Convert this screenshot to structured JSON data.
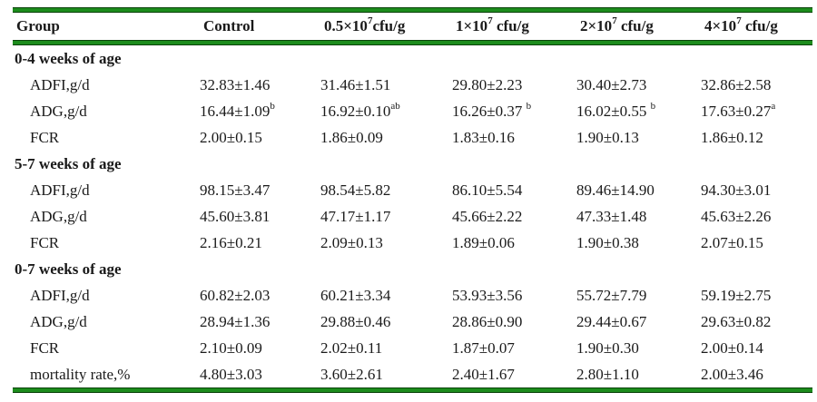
{
  "figure": {
    "name": "broiler-growth-performance-table"
  },
  "colors": {
    "rule_green": "#1d8c1d",
    "rule_edge": "#0a420a",
    "text": "#1a1a1a"
  },
  "table": {
    "header": [
      [
        {
          "t": "Group"
        }
      ],
      [
        {
          "t": "Control"
        }
      ],
      [
        {
          "t": "0.5×10"
        },
        {
          "t": "7",
          "sup": true
        },
        {
          "t": "cfu/g"
        }
      ],
      [
        {
          "t": "1×10"
        },
        {
          "t": "7",
          "sup": true
        },
        {
          "t": " cfu/g"
        }
      ],
      [
        {
          "t": "2×10"
        },
        {
          "t": "7",
          "sup": true
        },
        {
          "t": " cfu/g"
        }
      ],
      [
        {
          "t": "4×10"
        },
        {
          "t": "7",
          "sup": true
        },
        {
          "t": " cfu/g"
        }
      ]
    ],
    "sections": [
      {
        "title": "0-4 weeks of age",
        "rows": [
          {
            "label": "ADFI,g/d",
            "values": [
              [
                {
                  "t": "32.83±1.46"
                }
              ],
              [
                {
                  "t": "31.46±1.51"
                }
              ],
              [
                {
                  "t": "29.80±2.23"
                }
              ],
              [
                {
                  "t": "30.40±2.73"
                }
              ],
              [
                {
                  "t": "32.86±2.58"
                }
              ]
            ]
          },
          {
            "label": "ADG,g/d",
            "values": [
              [
                {
                  "t": "16.44±1.09"
                },
                {
                  "t": "b",
                  "sup": true
                }
              ],
              [
                {
                  "t": "16.92±0.10"
                },
                {
                  "t": "ab",
                  "sup": true
                }
              ],
              [
                {
                  "t": "16.26±0.37 "
                },
                {
                  "t": "b",
                  "sup": true
                }
              ],
              [
                {
                  "t": "16.02±0.55 "
                },
                {
                  "t": "b",
                  "sup": true
                }
              ],
              [
                {
                  "t": "17.63±0.27"
                },
                {
                  "t": "a",
                  "sup": true
                }
              ]
            ]
          },
          {
            "label": "FCR",
            "values": [
              [
                {
                  "t": "2.00±0.15"
                }
              ],
              [
                {
                  "t": "1.86±0.09"
                }
              ],
              [
                {
                  "t": "1.83±0.16"
                }
              ],
              [
                {
                  "t": "1.90±0.13"
                }
              ],
              [
                {
                  "t": "1.86±0.12"
                }
              ]
            ]
          }
        ]
      },
      {
        "title": "5-7 weeks of age",
        "rows": [
          {
            "label": "ADFI,g/d",
            "values": [
              [
                {
                  "t": "98.15±3.47"
                }
              ],
              [
                {
                  "t": "98.54±5.82"
                }
              ],
              [
                {
                  "t": "86.10±5.54"
                }
              ],
              [
                {
                  "t": "89.46±14.90"
                }
              ],
              [
                {
                  "t": "94.30±3.01"
                }
              ]
            ]
          },
          {
            "label": "ADG,g/d",
            "values": [
              [
                {
                  "t": "45.60±3.81"
                }
              ],
              [
                {
                  "t": "47.17±1.17"
                }
              ],
              [
                {
                  "t": "45.66±2.22"
                }
              ],
              [
                {
                  "t": "47.33±1.48"
                }
              ],
              [
                {
                  "t": "45.63±2.26"
                }
              ]
            ]
          },
          {
            "label": "FCR",
            "values": [
              [
                {
                  "t": "2.16±0.21"
                }
              ],
              [
                {
                  "t": "2.09±0.13"
                }
              ],
              [
                {
                  "t": "1.89±0.06"
                }
              ],
              [
                {
                  "t": "1.90±0.38"
                }
              ],
              [
                {
                  "t": "2.07±0.15"
                }
              ]
            ]
          }
        ]
      },
      {
        "title": "0-7 weeks of age",
        "rows": [
          {
            "label": "ADFI,g/d",
            "values": [
              [
                {
                  "t": "60.82±2.03"
                }
              ],
              [
                {
                  "t": "60.21±3.34"
                }
              ],
              [
                {
                  "t": "53.93±3.56"
                }
              ],
              [
                {
                  "t": "55.72±7.79"
                }
              ],
              [
                {
                  "t": "59.19±2.75"
                }
              ]
            ]
          },
          {
            "label": "ADG,g/d",
            "values": [
              [
                {
                  "t": "28.94±1.36"
                }
              ],
              [
                {
                  "t": "29.88±0.46"
                }
              ],
              [
                {
                  "t": "28.86±0.90"
                }
              ],
              [
                {
                  "t": "29.44±0.67"
                }
              ],
              [
                {
                  "t": "29.63±0.82"
                }
              ]
            ]
          },
          {
            "label": "FCR",
            "values": [
              [
                {
                  "t": "2.10±0.09"
                }
              ],
              [
                {
                  "t": "2.02±0.11"
                }
              ],
              [
                {
                  "t": "1.87±0.07"
                }
              ],
              [
                {
                  "t": "1.90±0.30"
                }
              ],
              [
                {
                  "t": "2.00±0.14"
                }
              ]
            ]
          },
          {
            "label": "mortality rate,%",
            "values": [
              [
                {
                  "t": "4.80±3.03"
                }
              ],
              [
                {
                  "t": "3.60±2.61"
                }
              ],
              [
                {
                  "t": "2.40±1.67"
                }
              ],
              [
                {
                  "t": "2.80±1.10"
                }
              ],
              [
                {
                  "t": "2.00±3.46"
                }
              ]
            ]
          }
        ]
      }
    ]
  }
}
